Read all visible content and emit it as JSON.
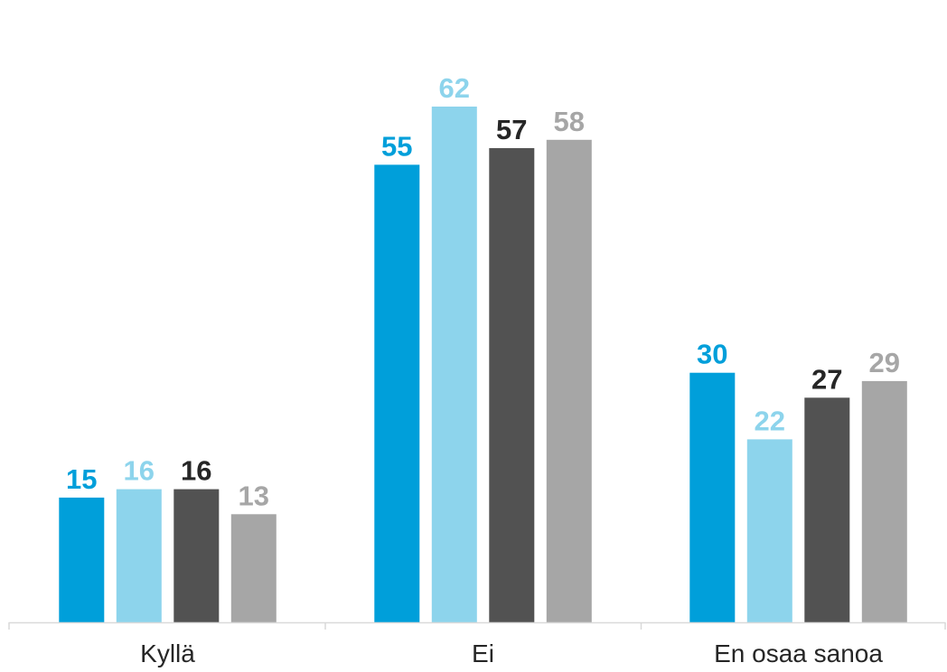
{
  "chart_data": {
    "type": "bar",
    "categories": [
      "Kyllä",
      "Ei",
      "En osaa sanoa"
    ],
    "series": [
      {
        "values": [
          15,
          55,
          30
        ],
        "color": "#009FDA"
      },
      {
        "values": [
          16,
          62,
          22
        ],
        "color": "#8DD4EC"
      },
      {
        "values": [
          16,
          57,
          27
        ],
        "color": "#525252"
      },
      {
        "values": [
          13,
          58,
          29
        ],
        "color": "#A6A6A6"
      }
    ],
    "ylim": [
      0,
      62
    ],
    "grid": false,
    "legend": "none",
    "data_labels": true
  }
}
